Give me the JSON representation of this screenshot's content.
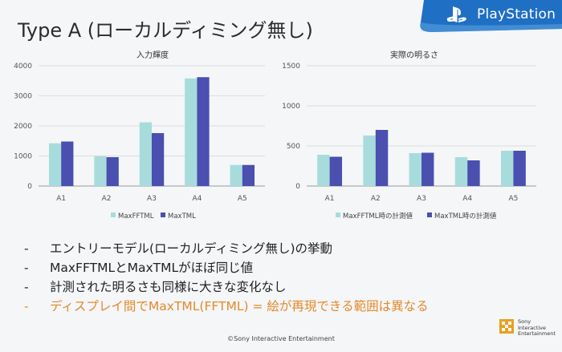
{
  "slide": {
    "title": "Type A (ローカルディミング無し)",
    "brand": "PlayStation",
    "copyright": "©Sony Interactive Entertainment",
    "sie_lines": [
      "Sony",
      "Interactive",
      "Entertainment"
    ],
    "bullets": [
      {
        "dash": "-",
        "text": "エントリーモデル(ローカルディミング無し)の挙動",
        "highlight": false
      },
      {
        "dash": "-",
        "text": "MaxFFTMLとMaxTMLがほぼ同じ値",
        "highlight": false
      },
      {
        "dash": "-",
        "text": "計測された明るさも同様に大きな変化なし",
        "highlight": false
      },
      {
        "dash": "-",
        "text": "ディスプレイ間でMaxTML(FFTML) = 絵が再現できる範囲は異なる",
        "highlight": true
      }
    ]
  },
  "colors": {
    "series1": "#a8dcdc",
    "series2": "#4a4fb0",
    "highlight": "#e58a2a",
    "banner": "#1f6fc4"
  },
  "chart_data": [
    {
      "type": "bar",
      "title": "入力輝度",
      "categories": [
        "A1",
        "A2",
        "A3",
        "A4",
        "A5"
      ],
      "ylim": [
        0,
        4000
      ],
      "yticks": [
        0,
        1000,
        2000,
        3000,
        4000
      ],
      "series": [
        {
          "name": "MaxFFTML",
          "values": [
            1420,
            990,
            2120,
            3580,
            700
          ]
        },
        {
          "name": "MaxTML",
          "values": [
            1480,
            960,
            1760,
            3620,
            700
          ]
        }
      ],
      "legend": "bottom"
    },
    {
      "type": "bar",
      "title": "実際の明るさ",
      "categories": [
        "A1",
        "A2",
        "A3",
        "A4",
        "A5"
      ],
      "ylim": [
        0,
        1500
      ],
      "yticks": [
        0,
        500,
        1000,
        1500
      ],
      "series": [
        {
          "name": "MaxFFTML時の計測値",
          "values": [
            390,
            630,
            410,
            360,
            440
          ]
        },
        {
          "name": "MaxTML時の計測値",
          "values": [
            365,
            700,
            415,
            320,
            440
          ]
        }
      ],
      "legend": "bottom"
    }
  ]
}
